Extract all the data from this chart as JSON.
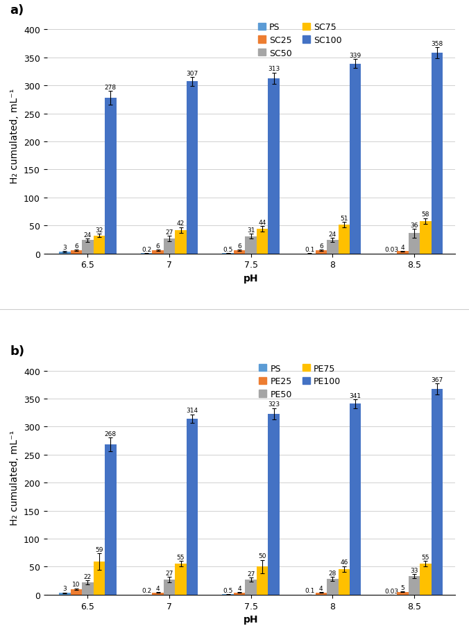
{
  "ph_labels": [
    "6.5",
    "7",
    "7.5",
    "8",
    "8.5"
  ],
  "subplot_a": {
    "label": "a)",
    "series_labels": [
      "PS",
      "SC25",
      "SC50",
      "SC75",
      "SC100"
    ],
    "colors": [
      "#5B9BD5",
      "#ED7D31",
      "#A5A5A5",
      "#FFC000",
      "#4472C4"
    ],
    "values": {
      "PS": [
        3,
        0.2,
        0.5,
        0.1,
        0.03
      ],
      "SC25": [
        6,
        6,
        6,
        6,
        4
      ],
      "SC50": [
        24,
        27,
        31,
        24,
        36
      ],
      "SC75": [
        32,
        42,
        44,
        51,
        58
      ],
      "SC100": [
        278,
        307,
        313,
        339,
        358
      ]
    },
    "errors": {
      "PS": [
        1,
        0.1,
        0.2,
        0.05,
        0.02
      ],
      "SC25": [
        1,
        1,
        1,
        1,
        0.5
      ],
      "SC50": [
        3,
        5,
        4,
        4,
        8
      ],
      "SC75": [
        3,
        5,
        5,
        5,
        5
      ],
      "SC100": [
        12,
        8,
        10,
        8,
        10
      ]
    },
    "value_labels": {
      "PS": [
        "3",
        "0.2",
        "0.5",
        "0.1",
        "0.03"
      ],
      "SC25": [
        "6",
        "6",
        "6",
        "6",
        "4"
      ],
      "SC50": [
        "24",
        "27",
        "31",
        "24",
        "36"
      ],
      "SC75": [
        "32",
        "42",
        "44",
        "51",
        "58"
      ],
      "SC100": [
        "278",
        "307",
        "313",
        "339",
        "358"
      ]
    },
    "ylabel": "H₂ cumulated, mL⁻¹",
    "xlabel": "pH",
    "ylim": [
      0,
      420
    ],
    "yticks": [
      0,
      50,
      100,
      150,
      200,
      250,
      300,
      350,
      400
    ],
    "legend_labels": [
      "PS",
      "SC25",
      "SC50",
      "SC75",
      "SC100"
    ]
  },
  "subplot_b": {
    "label": "b)",
    "series_labels": [
      "PS",
      "PE25",
      "PE50",
      "PE75",
      "PE100"
    ],
    "colors": [
      "#5B9BD5",
      "#ED7D31",
      "#A5A5A5",
      "#FFC000",
      "#4472C4"
    ],
    "values": {
      "PS": [
        3,
        0.2,
        0.5,
        0.1,
        0.03
      ],
      "PE25": [
        10,
        4,
        4,
        4,
        5
      ],
      "PE50": [
        22,
        27,
        27,
        28,
        33
      ],
      "PE75": [
        59,
        55,
        50,
        46,
        55
      ],
      "PE100": [
        268,
        314,
        323,
        341,
        367
      ]
    },
    "errors": {
      "PS": [
        1,
        0.1,
        0.2,
        0.05,
        0.02
      ],
      "PE25": [
        1.5,
        0.5,
        0.5,
        0.5,
        0.5
      ],
      "PE50": [
        4,
        5,
        4,
        4,
        4
      ],
      "PE75": [
        15,
        5,
        12,
        5,
        5
      ],
      "PE100": [
        12,
        8,
        10,
        8,
        10
      ]
    },
    "value_labels": {
      "PS": [
        "3",
        "0.2",
        "0.5",
        "0.1",
        "0.03"
      ],
      "PE25": [
        "10",
        "4",
        "4",
        "4",
        "5"
      ],
      "PE50": [
        "22",
        "27",
        "27",
        "28",
        "33"
      ],
      "PE75": [
        "59",
        "55",
        "50",
        "46",
        "55"
      ],
      "PE100": [
        "268",
        "314",
        "323",
        "341",
        "367"
      ]
    },
    "ylabel": "H₂ cumulated, mL⁻¹",
    "xlabel": "pH",
    "ylim": [
      0,
      420
    ],
    "yticks": [
      0,
      50,
      100,
      150,
      200,
      250,
      300,
      350,
      400
    ],
    "legend_labels": [
      "PS",
      "PE25",
      "PE50",
      "PE75",
      "PE100"
    ]
  },
  "bar_width": 0.14,
  "fig_bg": "#FFFFFF",
  "panel_bg": "#FFFFFF",
  "grid_color": "#D0D0D0",
  "legend_fontsize": 9,
  "tick_fontsize": 9,
  "axis_label_fontsize": 10,
  "value_label_fontsize": 6.5,
  "subplot_label_fontsize": 13
}
